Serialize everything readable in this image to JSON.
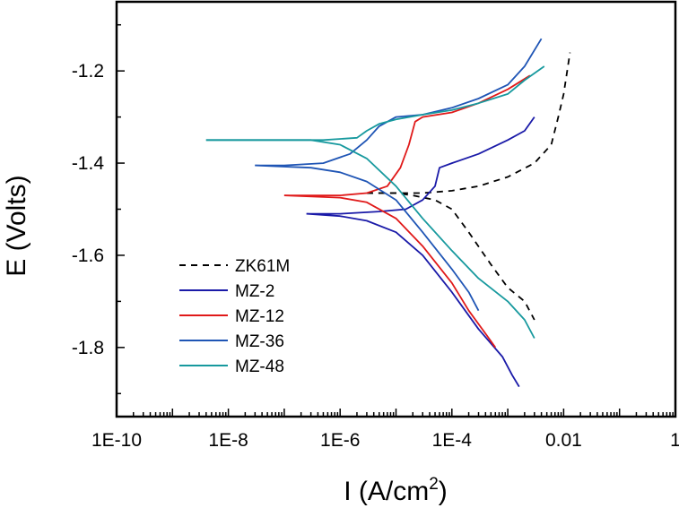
{
  "chart_data": {
    "type": "line",
    "title": "",
    "xlabel": "I (A/cm",
    "xlabel_sup": "2",
    "xlabel_close": ")",
    "ylabel": "E (Volts)",
    "xscale": "log",
    "xlim": [
      1e-10,
      1
    ],
    "ylim": [
      -1.95,
      -1.05
    ],
    "x_ticks": [
      1e-10,
      1e-08,
      1e-06,
      0.0001,
      0.01,
      1
    ],
    "x_tick_labels": [
      "1E-10",
      "1E-8",
      "1E-6",
      "1E-4",
      "0.01",
      "1"
    ],
    "y_ticks": [
      -1.2,
      -1.4,
      -1.6,
      -1.8
    ],
    "y_tick_labels": [
      "-1.2",
      "-1.4",
      "-1.6",
      "-1.8"
    ],
    "grid": false,
    "legend_position": "bottom-left",
    "series": [
      {
        "name": "ZK61M",
        "color": "#000000",
        "dash": "dashed",
        "anodic": [
          [
            3e-06,
            -1.465
          ],
          [
            1e-05,
            -1.465
          ],
          [
            3e-05,
            -1.465
          ],
          [
            0.0001,
            -1.46
          ],
          [
            0.0003,
            -1.45
          ],
          [
            0.001,
            -1.43
          ],
          [
            0.003,
            -1.4
          ],
          [
            0.006,
            -1.36
          ],
          [
            0.008,
            -1.3
          ],
          [
            0.01,
            -1.25
          ],
          [
            0.013,
            -1.16
          ]
        ],
        "cathodic": [
          [
            3e-06,
            -1.465
          ],
          [
            1e-05,
            -1.465
          ],
          [
            2e-05,
            -1.47
          ],
          [
            5e-05,
            -1.48
          ],
          [
            0.0001,
            -1.5
          ],
          [
            0.0002,
            -1.55
          ],
          [
            0.0005,
            -1.62
          ],
          [
            0.001,
            -1.67
          ],
          [
            0.002,
            -1.7
          ],
          [
            0.003,
            -1.74
          ]
        ]
      },
      {
        "name": "MZ-2",
        "color": "#1a1aa8",
        "dash": "solid",
        "anodic": [
          [
            2.5e-07,
            -1.51
          ],
          [
            1e-06,
            -1.51
          ],
          [
            5e-06,
            -1.505
          ],
          [
            1.5e-05,
            -1.5
          ],
          [
            3e-05,
            -1.48
          ],
          [
            5e-05,
            -1.45
          ],
          [
            6e-05,
            -1.41
          ],
          [
            0.0001,
            -1.4
          ],
          [
            0.0003,
            -1.38
          ],
          [
            0.001,
            -1.35
          ],
          [
            0.002,
            -1.33
          ],
          [
            0.003,
            -1.3
          ]
        ],
        "cathodic": [
          [
            2.5e-07,
            -1.51
          ],
          [
            1e-06,
            -1.515
          ],
          [
            3e-06,
            -1.525
          ],
          [
            1e-05,
            -1.55
          ],
          [
            3e-05,
            -1.6
          ],
          [
            0.0001,
            -1.68
          ],
          [
            0.0003,
            -1.76
          ],
          [
            0.0008,
            -1.82
          ],
          [
            0.0012,
            -1.86
          ],
          [
            0.0016,
            -1.885
          ]
        ]
      },
      {
        "name": "MZ-12",
        "color": "#e01919",
        "dash": "solid",
        "anodic": [
          [
            1e-07,
            -1.47
          ],
          [
            1e-06,
            -1.47
          ],
          [
            3e-06,
            -1.465
          ],
          [
            7e-06,
            -1.45
          ],
          [
            1.2e-05,
            -1.41
          ],
          [
            1.7e-05,
            -1.36
          ],
          [
            2.2e-05,
            -1.31
          ],
          [
            3e-05,
            -1.3
          ],
          [
            0.0001,
            -1.29
          ],
          [
            0.0003,
            -1.27
          ],
          [
            0.001,
            -1.24
          ],
          [
            0.0025,
            -1.21
          ]
        ],
        "cathodic": [
          [
            1e-07,
            -1.47
          ],
          [
            1e-06,
            -1.475
          ],
          [
            3e-06,
            -1.485
          ],
          [
            1e-05,
            -1.52
          ],
          [
            3e-05,
            -1.58
          ],
          [
            0.0001,
            -1.66
          ],
          [
            0.0002,
            -1.72
          ],
          [
            0.0004,
            -1.77
          ],
          [
            0.0006,
            -1.8
          ]
        ]
      },
      {
        "name": "MZ-36",
        "color": "#1f55b5",
        "dash": "solid",
        "anodic": [
          [
            3e-08,
            -1.405
          ],
          [
            1e-07,
            -1.405
          ],
          [
            5e-07,
            -1.4
          ],
          [
            1.5e-06,
            -1.38
          ],
          [
            3e-06,
            -1.35
          ],
          [
            5e-06,
            -1.32
          ],
          [
            1e-05,
            -1.3
          ],
          [
            3e-05,
            -1.295
          ],
          [
            0.0001,
            -1.28
          ],
          [
            0.0003,
            -1.26
          ],
          [
            0.001,
            -1.23
          ],
          [
            0.002,
            -1.19
          ],
          [
            0.004,
            -1.13
          ]
        ],
        "cathodic": [
          [
            3e-08,
            -1.405
          ],
          [
            3e-07,
            -1.41
          ],
          [
            1e-06,
            -1.42
          ],
          [
            3e-06,
            -1.44
          ],
          [
            1e-05,
            -1.48
          ],
          [
            3e-05,
            -1.55
          ],
          [
            0.0001,
            -1.63
          ],
          [
            0.0002,
            -1.68
          ],
          [
            0.0003,
            -1.72
          ]
        ]
      },
      {
        "name": "MZ-48",
        "color": "#17999e",
        "dash": "solid",
        "anodic": [
          [
            4e-09,
            -1.35
          ],
          [
            1e-07,
            -1.35
          ],
          [
            5e-07,
            -1.35
          ],
          [
            2e-06,
            -1.345
          ],
          [
            3e-06,
            -1.33
          ],
          [
            5e-06,
            -1.315
          ],
          [
            1e-05,
            -1.305
          ],
          [
            3e-05,
            -1.295
          ],
          [
            0.0001,
            -1.285
          ],
          [
            0.0003,
            -1.27
          ],
          [
            0.001,
            -1.25
          ],
          [
            0.002,
            -1.22
          ],
          [
            0.0045,
            -1.19
          ]
        ],
        "cathodic": [
          [
            4e-09,
            -1.35
          ],
          [
            3e-07,
            -1.35
          ],
          [
            1e-06,
            -1.36
          ],
          [
            3e-06,
            -1.39
          ],
          [
            1e-05,
            -1.45
          ],
          [
            3e-05,
            -1.52
          ],
          [
            0.0001,
            -1.59
          ],
          [
            0.0003,
            -1.65
          ],
          [
            0.001,
            -1.7
          ],
          [
            0.002,
            -1.74
          ],
          [
            0.003,
            -1.78
          ]
        ]
      }
    ]
  }
}
